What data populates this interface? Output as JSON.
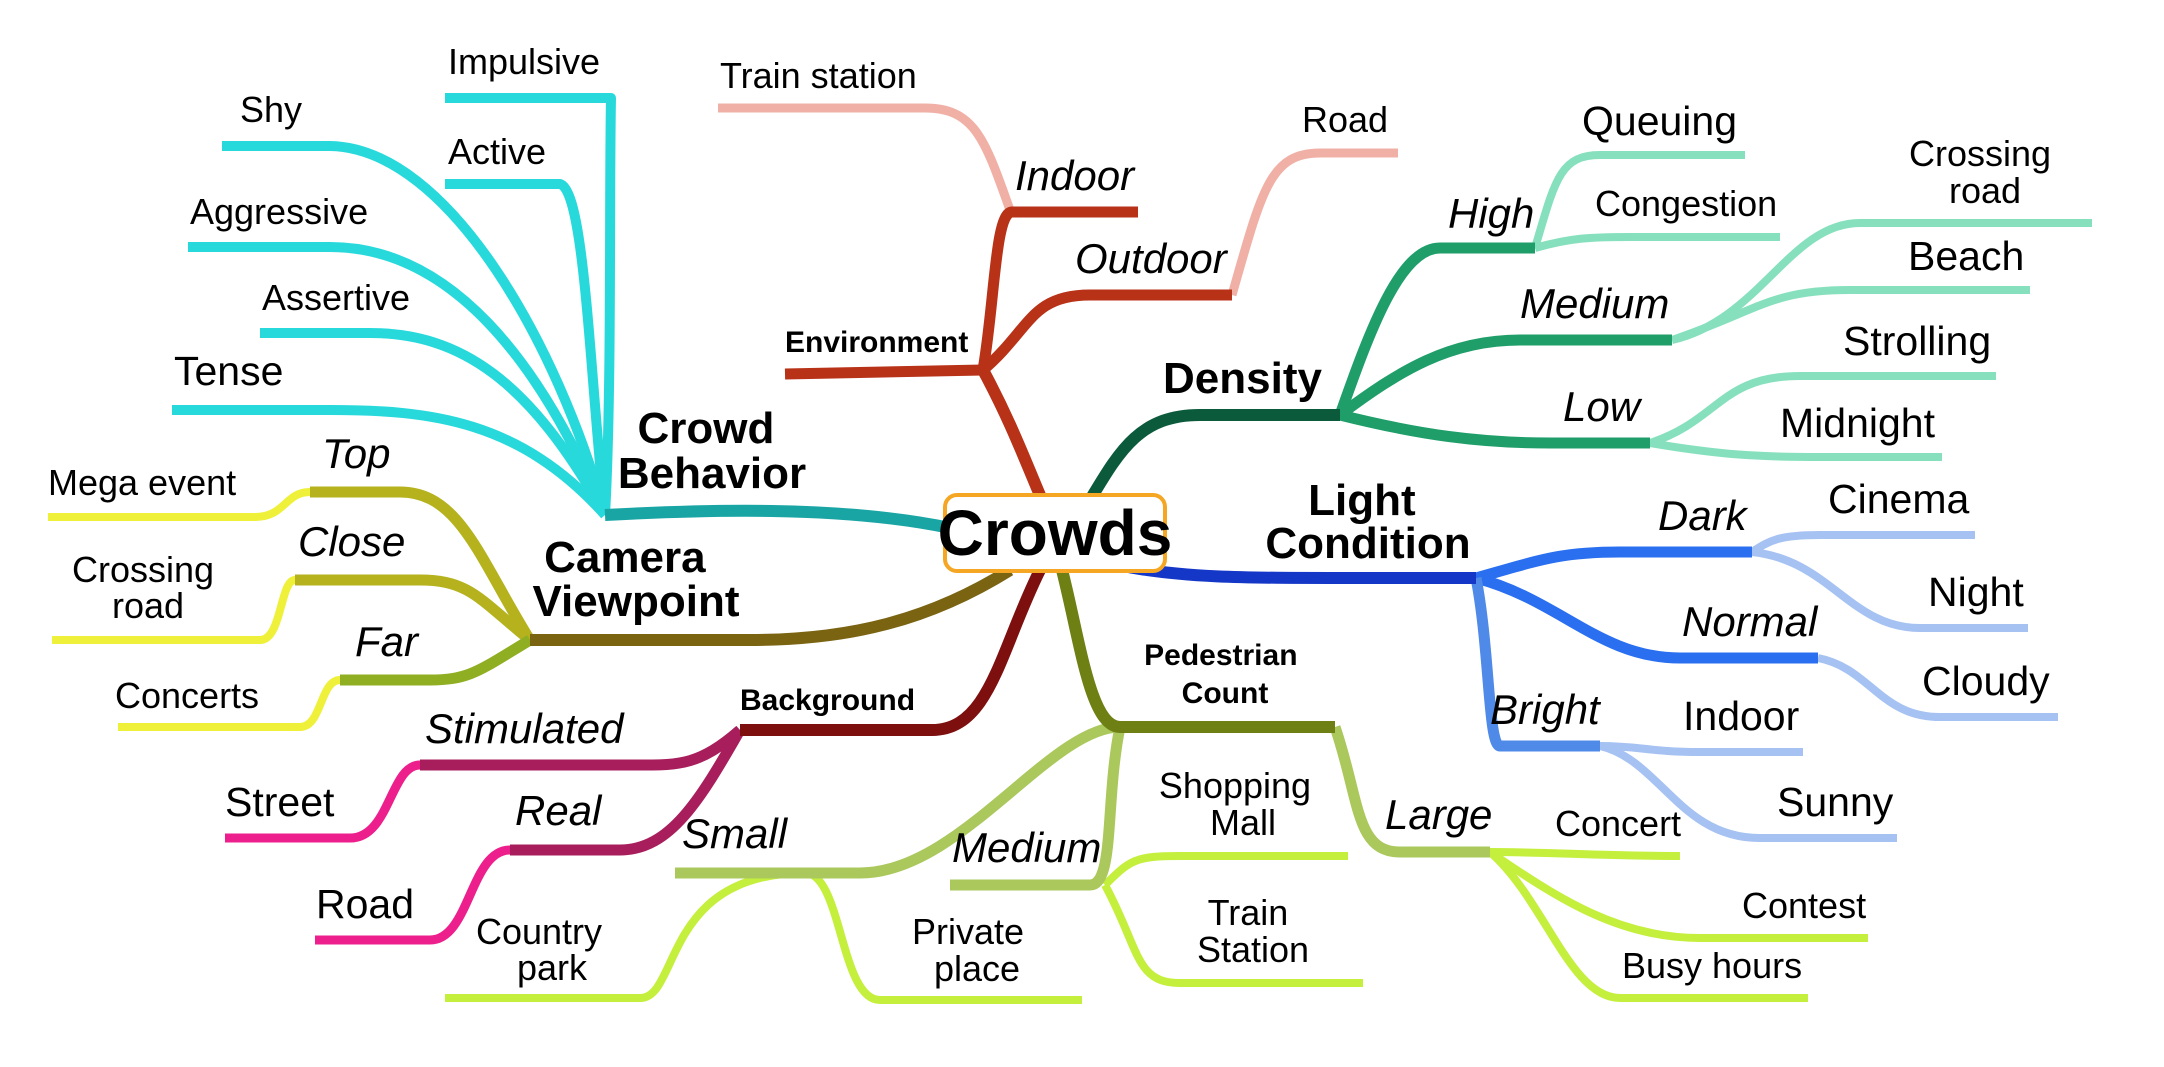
{
  "center": "Crowds",
  "colors": {
    "center_border": "#f5a623",
    "crowd_behavior": "#1aa5a5",
    "crowd_behavior_leaves": "#28d9dc",
    "environment": "#b83218",
    "environment_leaves": "#f0b0a6",
    "density": "#0c5a3c",
    "density_sub": "#1f9e6a",
    "density_leaves": "#86e0bd",
    "light": "#1437c8",
    "light_sub": "#2a6ff0",
    "light_leaves": "#a6c2f2",
    "pedestrian": "#6e7f14",
    "pedestrian_sub": "#aac85c",
    "pedestrian_leaves": "#c4ef3c",
    "background": "#7d0f0f",
    "background_sub": "#a81e5c",
    "background_leaves": "#ec1f8c",
    "camera": "#7a6412",
    "camera_sub": "#b5b21e",
    "camera_leaves": "#eef03a"
  },
  "branches": {
    "crowd_behavior": {
      "label": [
        "Crowd",
        "Behavior"
      ],
      "leaves": [
        "Impulsive",
        "Shy",
        "Active",
        "Aggressive",
        "Assertive",
        "Tense"
      ]
    },
    "environment": {
      "label": "Environment",
      "indoor": {
        "label": "Indoor",
        "leaves": [
          "Train station"
        ]
      },
      "outdoor": {
        "label": "Outdoor",
        "leaves": [
          "Road"
        ]
      }
    },
    "density": {
      "label": "Density",
      "high": {
        "label": "High",
        "leaves": [
          "Queuing",
          "Congestion"
        ]
      },
      "medium": {
        "label": "Medium",
        "leaves": [
          [
            "Crossing",
            "road"
          ],
          "Beach"
        ]
      },
      "low": {
        "label": "Low",
        "leaves": [
          "Strolling",
          "Midnight"
        ]
      }
    },
    "light_condition": {
      "label": [
        "Light",
        "Condition"
      ],
      "dark": {
        "label": "Dark",
        "leaves": [
          "Cinema",
          "Night"
        ]
      },
      "normal": {
        "label": "Normal",
        "leaves": [
          "Cloudy"
        ]
      },
      "bright": {
        "label": "Bright",
        "leaves": [
          "Indoor",
          "Sunny"
        ]
      }
    },
    "pedestrian_count": {
      "label": [
        "Pedestrian",
        "Count"
      ],
      "small": {
        "label": "Small",
        "leaves": [
          [
            "Country",
            "park"
          ],
          [
            "Private",
            "place"
          ]
        ]
      },
      "medium": {
        "label": "Medium",
        "leaves": [
          [
            "Shopping",
            "Mall"
          ],
          [
            "Train",
            "Station"
          ]
        ]
      },
      "large": {
        "label": "Large",
        "leaves": [
          "Concert",
          "Contest",
          "Busy hours"
        ]
      }
    },
    "background": {
      "label": "Background",
      "stimulated": {
        "label": "Stimulated",
        "leaves": [
          "Street"
        ]
      },
      "real": {
        "label": "Real",
        "leaves": [
          "Road"
        ]
      }
    },
    "camera_viewpoint": {
      "label": [
        "Camera",
        "Viewpoint"
      ],
      "top": {
        "label": "Top",
        "leaves": [
          "Mega event"
        ]
      },
      "close": {
        "label": "Close",
        "leaves": [
          [
            "Crossing",
            "road"
          ]
        ]
      },
      "far": {
        "label": "Far",
        "leaves": [
          "Concerts"
        ]
      }
    }
  }
}
